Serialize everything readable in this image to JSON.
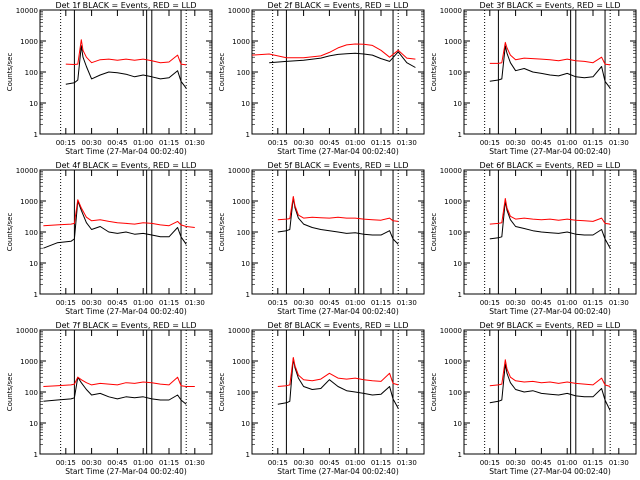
{
  "colors": {
    "black_series": "#000000",
    "red_series": "#ff0000",
    "axis": "#000000",
    "background": "#ffffff"
  },
  "common": {
    "ylabel": "Counts/sec",
    "xlabel": "Start Time (27-Mar-04 00:02:40)",
    "x_ticks": [
      "00:15",
      "00:30",
      "00:45",
      "01:00",
      "01:15",
      "01:30"
    ],
    "y_ticks": [
      "1",
      "10",
      "100",
      "1000",
      "10000"
    ],
    "ylim": [
      1,
      10000
    ],
    "y_scale": "log"
  },
  "chart_data": [
    {
      "type": "line",
      "title": "Det 1f BLACK = Events, RED = LLD",
      "x": [
        "00:07",
        "00:15",
        "00:20",
        "00:22",
        "00:24",
        "00:25",
        "00:27",
        "00:30",
        "00:35",
        "00:40",
        "00:45",
        "00:50",
        "00:55",
        "01:00",
        "01:05",
        "01:10",
        "01:15",
        "01:20",
        "01:22",
        "01:25"
      ],
      "series": [
        {
          "name": "Events",
          "color": "#000000",
          "values": [
            null,
            40,
            45,
            55,
            700,
            300,
            150,
            60,
            80,
            100,
            95,
            85,
            70,
            80,
            70,
            60,
            65,
            110,
            50,
            30
          ]
        },
        {
          "name": "LLD",
          "color": "#ff0000",
          "values": [
            null,
            180,
            175,
            180,
            1100,
            500,
            300,
            200,
            250,
            260,
            240,
            260,
            240,
            260,
            230,
            200,
            210,
            350,
            180,
            170
          ]
        }
      ]
    },
    {
      "type": "line",
      "title": "Det 2f BLACK = Events, RED = LLD",
      "x": [
        "00:00",
        "00:10",
        "00:20",
        "00:30",
        "00:40",
        "00:45",
        "00:50",
        "00:55",
        "01:00",
        "01:05",
        "01:10",
        "01:15",
        "01:20",
        "01:25",
        "01:30",
        "01:35"
      ],
      "series": [
        {
          "name": "Events",
          "color": "#000000",
          "values": [
            null,
            200,
            220,
            240,
            280,
            330,
            370,
            390,
            400,
            380,
            350,
            270,
            220,
            450,
            200,
            140
          ]
        },
        {
          "name": "LLD",
          "color": "#ff0000",
          "values": [
            350,
            380,
            290,
            290,
            330,
            430,
            600,
            750,
            800,
            780,
            720,
            500,
            300,
            500,
            280,
            260
          ]
        }
      ]
    },
    {
      "type": "line",
      "title": "Det 3f BLACK = Events, RED = LLD",
      "x": [
        "00:07",
        "00:15",
        "00:20",
        "00:22",
        "00:24",
        "00:25",
        "00:27",
        "00:30",
        "00:35",
        "00:40",
        "00:45",
        "00:50",
        "00:55",
        "01:00",
        "01:05",
        "01:10",
        "01:15",
        "01:20",
        "01:22",
        "01:25"
      ],
      "series": [
        {
          "name": "Events",
          "color": "#000000",
          "values": [
            null,
            50,
            55,
            60,
            700,
            400,
            200,
            110,
            130,
            100,
            90,
            80,
            75,
            90,
            70,
            65,
            70,
            150,
            50,
            30
          ]
        },
        {
          "name": "LLD",
          "color": "#ff0000",
          "values": [
            null,
            190,
            190,
            200,
            900,
            600,
            350,
            250,
            280,
            270,
            260,
            250,
            230,
            260,
            230,
            220,
            200,
            300,
            180,
            170
          ]
        }
      ]
    },
    {
      "type": "line",
      "title": "Det 4f BLACK = Events, RED = LLD",
      "x": [
        "00:02",
        "00:10",
        "00:18",
        "00:20",
        "00:22",
        "00:24",
        "00:27",
        "00:30",
        "00:35",
        "00:40",
        "00:45",
        "00:50",
        "00:55",
        "01:00",
        "01:05",
        "01:10",
        "01:15",
        "01:20",
        "01:22",
        "01:25",
        "01:30"
      ],
      "series": [
        {
          "name": "Events",
          "color": "#000000",
          "values": [
            30,
            45,
            50,
            60,
            1000,
            500,
            200,
            120,
            150,
            100,
            90,
            100,
            85,
            90,
            80,
            70,
            70,
            140,
            70,
            40,
            null
          ]
        },
        {
          "name": "LLD",
          "color": "#ff0000",
          "values": [
            160,
            170,
            180,
            190,
            1100,
            600,
            300,
            230,
            250,
            220,
            200,
            190,
            180,
            200,
            190,
            170,
            160,
            220,
            170,
            150,
            140
          ]
        }
      ]
    },
    {
      "type": "line",
      "title": "Det 5f BLACK = Events, RED = LLD",
      "x": [
        "00:07",
        "00:15",
        "00:20",
        "00:22",
        "00:24",
        "00:25",
        "00:27",
        "00:30",
        "00:35",
        "00:40",
        "00:45",
        "00:50",
        "00:55",
        "01:00",
        "01:05",
        "01:10",
        "01:15",
        "01:20",
        "01:22",
        "01:25"
      ],
      "series": [
        {
          "name": "Events",
          "color": "#000000",
          "values": [
            null,
            100,
            110,
            120,
            1300,
            600,
            280,
            180,
            140,
            120,
            110,
            100,
            90,
            95,
            85,
            80,
            80,
            110,
            60,
            40
          ]
        },
        {
          "name": "LLD",
          "color": "#ff0000",
          "values": [
            null,
            250,
            260,
            270,
            1400,
            700,
            350,
            280,
            300,
            290,
            280,
            300,
            280,
            280,
            260,
            250,
            240,
            280,
            230,
            220
          ]
        }
      ]
    },
    {
      "type": "line",
      "title": "Det 6f BLACK = Events, RED = LLD",
      "x": [
        "00:07",
        "00:15",
        "00:20",
        "00:22",
        "00:24",
        "00:25",
        "00:27",
        "00:30",
        "00:35",
        "00:40",
        "00:45",
        "00:50",
        "00:55",
        "01:00",
        "01:05",
        "01:10",
        "01:15",
        "01:20",
        "01:22",
        "01:25"
      ],
      "series": [
        {
          "name": "Events",
          "color": "#000000",
          "values": [
            null,
            60,
            65,
            70,
            1000,
            500,
            250,
            150,
            130,
            110,
            100,
            95,
            90,
            100,
            85,
            80,
            80,
            120,
            60,
            30
          ]
        },
        {
          "name": "LLD",
          "color": "#ff0000",
          "values": [
            null,
            180,
            190,
            200,
            1200,
            600,
            320,
            260,
            280,
            260,
            250,
            260,
            240,
            260,
            240,
            230,
            220,
            280,
            190,
            180
          ]
        }
      ]
    },
    {
      "type": "line",
      "title": "Det 7f BLACK = Events, RED = LLD",
      "x": [
        "00:02",
        "00:10",
        "00:18",
        "00:20",
        "00:22",
        "00:24",
        "00:27",
        "00:30",
        "00:35",
        "00:40",
        "00:45",
        "00:50",
        "00:55",
        "01:00",
        "01:05",
        "01:10",
        "01:15",
        "01:20",
        "01:22",
        "01:25",
        "01:30"
      ],
      "series": [
        {
          "name": "Events",
          "color": "#000000",
          "values": [
            50,
            55,
            60,
            65,
            300,
            200,
            120,
            80,
            90,
            70,
            60,
            70,
            65,
            70,
            60,
            55,
            55,
            80,
            55,
            40,
            null
          ]
        },
        {
          "name": "LLD",
          "color": "#ff0000",
          "values": [
            150,
            160,
            170,
            180,
            300,
            250,
            200,
            170,
            190,
            180,
            170,
            200,
            190,
            210,
            200,
            180,
            170,
            300,
            160,
            150,
            150
          ]
        }
      ]
    },
    {
      "type": "line",
      "title": "Det 8f BLACK = Events, RED = LLD",
      "x": [
        "00:07",
        "00:15",
        "00:20",
        "00:22",
        "00:24",
        "00:25",
        "00:27",
        "00:30",
        "00:35",
        "00:40",
        "00:45",
        "00:50",
        "00:55",
        "01:00",
        "01:05",
        "01:10",
        "01:15",
        "01:20",
        "01:22",
        "01:25"
      ],
      "series": [
        {
          "name": "Events",
          "color": "#000000",
          "values": [
            null,
            40,
            45,
            50,
            1200,
            600,
            280,
            150,
            120,
            130,
            250,
            150,
            110,
            100,
            90,
            80,
            85,
            150,
            60,
            30
          ]
        },
        {
          "name": "LLD",
          "color": "#ff0000",
          "values": [
            null,
            150,
            160,
            170,
            1300,
            700,
            350,
            250,
            230,
            260,
            400,
            280,
            260,
            280,
            250,
            230,
            220,
            400,
            190,
            170
          ]
        }
      ]
    },
    {
      "type": "line",
      "title": "Det 9f BLACK = Events, RED = LLD",
      "x": [
        "00:07",
        "00:15",
        "00:20",
        "00:22",
        "00:24",
        "00:25",
        "00:27",
        "00:30",
        "00:35",
        "00:40",
        "00:45",
        "00:50",
        "00:55",
        "01:00",
        "01:05",
        "01:10",
        "01:15",
        "01:20",
        "01:22",
        "01:25"
      ],
      "series": [
        {
          "name": "Events",
          "color": "#000000",
          "values": [
            null,
            45,
            50,
            55,
            800,
            400,
            200,
            120,
            100,
            110,
            90,
            85,
            80,
            90,
            75,
            70,
            70,
            130,
            55,
            25
          ]
        },
        {
          "name": "LLD",
          "color": "#ff0000",
          "values": [
            null,
            160,
            170,
            180,
            1100,
            550,
            300,
            230,
            210,
            220,
            200,
            210,
            190,
            210,
            190,
            180,
            170,
            280,
            170,
            150
          ]
        }
      ]
    }
  ]
}
